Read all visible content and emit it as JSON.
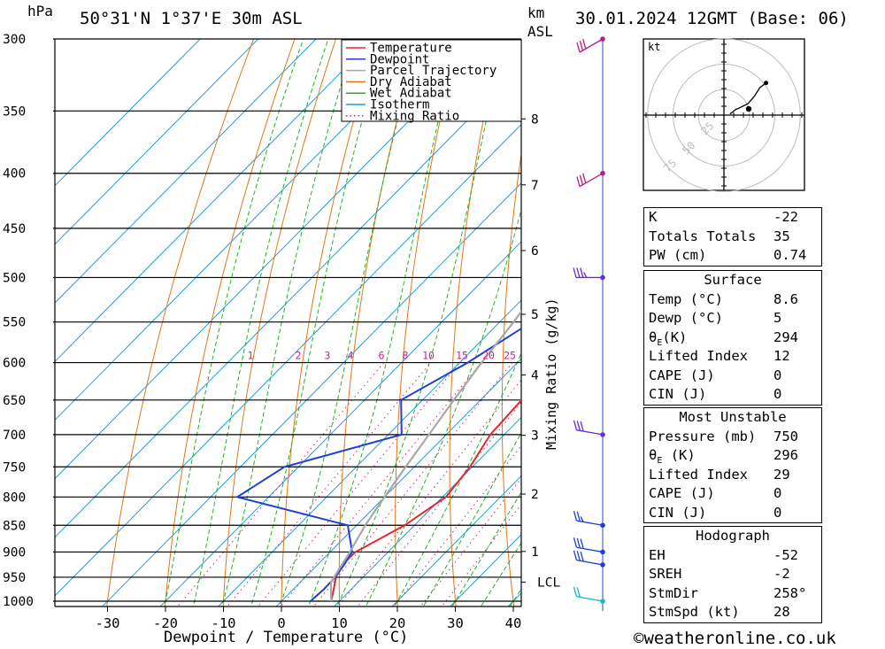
{
  "header": {
    "pressure_unit": "hPa",
    "location": "50°31'N  1°37'E  30m  ASL",
    "km_label": "km",
    "asl_label": "ASL",
    "date": "30.01.2024  12GMT  (Base: 06)"
  },
  "footer": {
    "copyright_symbol": "©",
    "site": "weatheronline.co.uk"
  },
  "chart_data": {
    "type": "line",
    "subtype": "skew-t log-p",
    "xlabel": "Dewpoint / Temperature (°C)",
    "ylabel": "hPa",
    "mixing_ratio_label": "Mixing Ratio (g/kg)",
    "x_ticks": [
      -30,
      -20,
      -10,
      0,
      10,
      20,
      30,
      40
    ],
    "xlim": [
      -40,
      40
    ],
    "pressure_ticks": [
      300,
      350,
      400,
      450,
      500,
      550,
      600,
      650,
      700,
      750,
      800,
      850,
      900,
      950,
      1000
    ],
    "ylim_hpa": [
      1000,
      300
    ],
    "y_scale": "log",
    "height_ticks_km": [
      {
        "label": "8",
        "p": 356
      },
      {
        "label": "7",
        "p": 410
      },
      {
        "label": "6",
        "p": 472
      },
      {
        "label": "5",
        "p": 541
      },
      {
        "label": "4",
        "p": 616
      },
      {
        "label": "3",
        "p": 701
      },
      {
        "label": "2",
        "p": 795
      },
      {
        "label": "1",
        "p": 899
      },
      {
        "label": "LCL",
        "p": 960
      }
    ],
    "mixing_ratio_labels": [
      "1",
      "2",
      "3",
      "4",
      "6",
      "8",
      "10",
      "15",
      "20",
      "25"
    ],
    "legend": [
      {
        "name": "Temperature",
        "color": "#e8262b",
        "style": "solid"
      },
      {
        "name": "Dewpoint",
        "color": "#1f3fd6",
        "style": "solid"
      },
      {
        "name": "Parcel Trajectory",
        "color": "#a8a8a8",
        "style": "solid"
      },
      {
        "name": "Dry Adiabat",
        "color": "#e07818",
        "style": "solid"
      },
      {
        "name": "Wet Adiabat",
        "color": "#1fb41f",
        "style": "solid"
      },
      {
        "name": "Isotherm",
        "color": "#1e9ee0",
        "style": "solid"
      },
      {
        "name": "Mixing Ratio",
        "color": "#d0228c",
        "style": "dotted"
      }
    ],
    "series": [
      {
        "name": "Temperature",
        "color": "#e8262b",
        "points": [
          [
            1000,
            8.6
          ],
          [
            975,
            7
          ],
          [
            950,
            5.3
          ],
          [
            925,
            4.2
          ],
          [
            900,
            4.4
          ],
          [
            850,
            8.3
          ],
          [
            800,
            10.6
          ],
          [
            750,
            9.6
          ],
          [
            700,
            7.6
          ],
          [
            650,
            7.1
          ],
          [
            600,
            6.9
          ],
          [
            550,
            6.2
          ],
          [
            500,
            5.3
          ],
          [
            450,
            3.7
          ],
          [
            400,
            4.9
          ],
          [
            350,
            5.8
          ],
          [
            300,
            7.5
          ]
        ]
      },
      {
        "name": "Dewpoint",
        "color": "#1f3fd6",
        "points": [
          [
            1000,
            5
          ],
          [
            975,
            5.3
          ],
          [
            950,
            5.2
          ],
          [
            925,
            4.6
          ],
          [
            900,
            3.8
          ],
          [
            850,
            -1.5
          ],
          [
            800,
            -25.4
          ],
          [
            750,
            -22.4
          ],
          [
            700,
            -7.7
          ],
          [
            650,
            -13.7
          ],
          [
            600,
            -8.6
          ],
          [
            550,
            -4.5
          ],
          [
            500,
            -4.7
          ],
          [
            450,
            -0.8
          ],
          [
            400,
            -11.6
          ],
          [
            350,
            -6
          ],
          [
            300,
            2.1
          ]
        ]
      },
      {
        "name": "Parcel Trajectory",
        "color": "#a8a8a8",
        "points": [
          [
            1000,
            8.6
          ],
          [
            960,
            5.3
          ],
          [
            900,
            3.4
          ],
          [
            850,
            1.5
          ],
          [
            800,
            0
          ],
          [
            750,
            -1.5
          ],
          [
            700,
            -3
          ],
          [
            650,
            -4.6
          ],
          [
            600,
            -6.2
          ],
          [
            550,
            -7.6
          ],
          [
            500,
            -9.6
          ],
          [
            450,
            -11.6
          ],
          [
            400,
            -13.8
          ],
          [
            350,
            -16
          ],
          [
            300,
            -17.3
          ]
        ]
      }
    ],
    "wind_profile": [
      {
        "p": 300,
        "speed_kt": 30,
        "dir_deg": 300
      },
      {
        "p": 400,
        "speed_kt": 30,
        "dir_deg": 300
      },
      {
        "p": 500,
        "speed_kt": 35,
        "dir_deg": 270
      },
      {
        "p": 700,
        "speed_kt": 30,
        "dir_deg": 260
      },
      {
        "p": 850,
        "speed_kt": 25,
        "dir_deg": 260
      },
      {
        "p": 900,
        "speed_kt": 30,
        "dir_deg": 260
      },
      {
        "p": 925,
        "speed_kt": 30,
        "dir_deg": 260
      },
      {
        "p": 1000,
        "speed_kt": 20,
        "dir_deg": 260
      }
    ],
    "hodograph": {
      "unit_label": "kt",
      "ring_labels": [
        "25",
        "50",
        "75"
      ],
      "trace_kt": [
        [
          2,
          0.5
        ],
        [
          3,
          1.5
        ],
        [
          4,
          2.5
        ],
        [
          5,
          3
        ],
        [
          8,
          5
        ],
        [
          10,
          8
        ],
        [
          12,
          12
        ],
        [
          14,
          14
        ]
      ]
    }
  },
  "indices": {
    "rows": [
      {
        "label": "K",
        "value": "-22"
      },
      {
        "label": "Totals Totals",
        "value": "35"
      },
      {
        "label": "PW (cm)",
        "value": "0.74"
      }
    ]
  },
  "surface": {
    "title": "Surface",
    "rows": [
      {
        "label": "Temp (°C)",
        "value": "8.6"
      },
      {
        "label": "Dewp (°C)",
        "value": "5"
      },
      {
        "label": "θ",
        "sub": "E",
        "suffix": "(K)",
        "value": "294"
      },
      {
        "label": "Lifted Index",
        "value": "12"
      },
      {
        "label": "CAPE (J)",
        "value": "0"
      },
      {
        "label": "CIN (J)",
        "value": "0"
      }
    ]
  },
  "most_unstable": {
    "title": "Most Unstable",
    "rows": [
      {
        "label": "Pressure (mb)",
        "value": "750"
      },
      {
        "label": "θ",
        "sub": "E",
        "suffix": " (K)",
        "value": "296"
      },
      {
        "label": "Lifted Index",
        "value": "29"
      },
      {
        "label": "CAPE (J)",
        "value": "0"
      },
      {
        "label": "CIN (J)",
        "value": "0"
      }
    ]
  },
  "hodograph_table": {
    "title": "Hodograph",
    "rows": [
      {
        "label": "EH",
        "value": "-52"
      },
      {
        "label": "SREH",
        "value": "-2"
      },
      {
        "label": "StmDir",
        "value": "258°"
      },
      {
        "label": "StmSpd (kt)",
        "value": "28"
      }
    ]
  }
}
